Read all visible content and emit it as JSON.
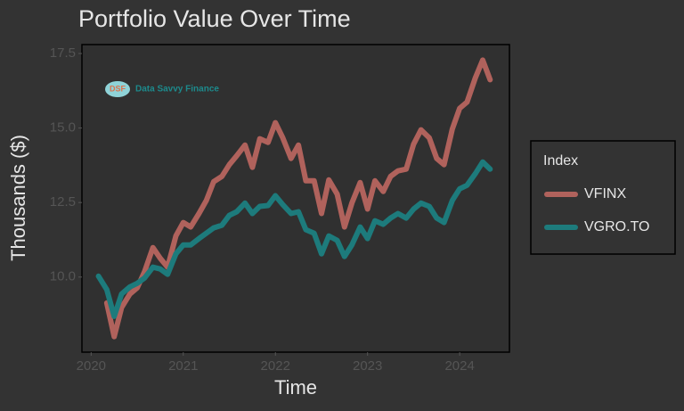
{
  "chart_data": {
    "type": "line",
    "title": "Portfolio Value Over Time",
    "x_label": "Time",
    "y_label": "Thousands ($)",
    "annotations": [
      "DSF",
      "Data Savvy Finance"
    ],
    "legend_title": "Index",
    "legend": "right",
    "grid": false,
    "x": [
      2020.08,
      2020.17,
      2020.25,
      2020.33,
      2020.42,
      2020.5,
      2020.58,
      2020.67,
      2020.75,
      2020.83,
      2020.92,
      2021,
      2021.08,
      2021.17,
      2021.25,
      2021.33,
      2021.42,
      2021.5,
      2021.58,
      2021.67,
      2021.75,
      2021.83,
      2021.92,
      2022,
      2022.08,
      2022.17,
      2022.25,
      2022.33,
      2022.42,
      2022.5,
      2022.58,
      2022.67,
      2022.75,
      2022.83,
      2022.92,
      2023,
      2023.08,
      2023.17,
      2023.25,
      2023.33,
      2023.42,
      2023.5,
      2023.58,
      2023.67,
      2023.75,
      2023.83,
      2023.92,
      2024,
      2024.08,
      2024.17,
      2024.25,
      2024.33
    ],
    "series": [
      {
        "name": "VFINX",
        "color": "#b0625c",
        "values": [
          null,
          9.13,
          8.0,
          8.98,
          9.43,
          9.64,
          10.18,
          10.99,
          10.63,
          10.33,
          11.38,
          11.83,
          11.68,
          12.13,
          12.57,
          13.2,
          13.38,
          13.77,
          14.07,
          14.43,
          13.68,
          14.64,
          14.52,
          15.18,
          14.67,
          13.98,
          14.43,
          13.23,
          13.23,
          12.13,
          13.26,
          12.78,
          11.68,
          12.48,
          13.17,
          12.28,
          13.23,
          12.87,
          13.38,
          13.56,
          13.62,
          14.46,
          14.94,
          14.67,
          13.98,
          13.77,
          14.97,
          15.66,
          15.87,
          16.68,
          17.28,
          16.62
        ]
      },
      {
        "name": "VGRO.TO",
        "color": "#1d7b7c",
        "values": [
          10.03,
          9.58,
          8.68,
          9.43,
          9.67,
          9.79,
          9.97,
          10.33,
          10.27,
          10.09,
          10.78,
          11.08,
          11.08,
          11.29,
          11.47,
          11.65,
          11.74,
          12.07,
          12.19,
          12.48,
          12.13,
          12.37,
          12.4,
          12.73,
          12.43,
          12.13,
          12.19,
          11.59,
          11.47,
          10.78,
          11.38,
          11.23,
          10.69,
          11.08,
          11.68,
          11.29,
          11.89,
          11.77,
          11.98,
          12.13,
          11.98,
          12.28,
          12.48,
          12.37,
          11.98,
          11.83,
          12.57,
          12.96,
          13.08,
          13.47,
          13.86,
          13.62
        ]
      }
    ],
    "xlim": [
      2019.9,
      2024.54
    ],
    "xticks": [
      2020,
      2021,
      2022,
      2023,
      2024
    ],
    "ylim": [
      7.48,
      17.8
    ],
    "yticks": [
      {
        "value": 10,
        "label": "10.0"
      },
      12.5,
      {
        "value": 15,
        "label": "15.0"
      },
      17.5
    ]
  }
}
